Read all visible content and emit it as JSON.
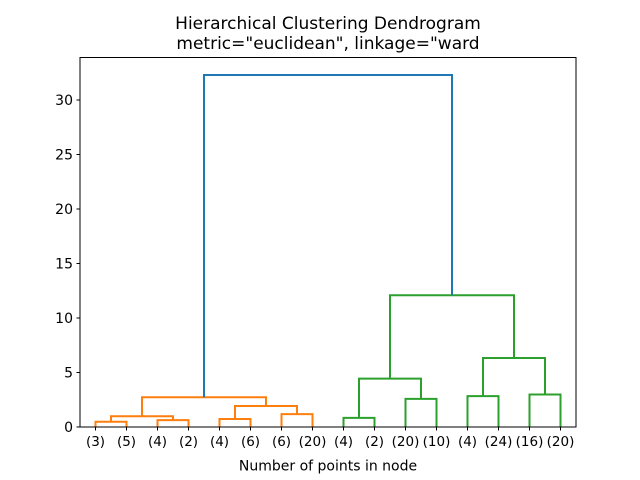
{
  "chart_data": {
    "type": "dendrogram",
    "title": "Hierarchical Clustering Dendrogram",
    "subtitle": "metric=\"euclidean\", linkage=\"ward",
    "xlabel": "Number of points in node",
    "ylabel": "",
    "xlim": [
      0,
      160
    ],
    "ylim": [
      0,
      33.9
    ],
    "yticks": [
      0,
      5,
      10,
      15,
      20,
      25,
      30
    ],
    "grid": false,
    "legend": null,
    "leaf_x": [
      5,
      15,
      25,
      35,
      45,
      55,
      65,
      75,
      85,
      95,
      105,
      115,
      125,
      135,
      145,
      155
    ],
    "leaf_labels": [
      "(3)",
      "(5)",
      "(4)",
      "(2)",
      "(4)",
      "(6)",
      "(6)",
      "(20)",
      "(4)",
      "(2)",
      "(20)",
      "(10)",
      "(4)",
      "(24)",
      "(16)",
      "(20)"
    ],
    "colors": {
      "blue": "#1f77b4",
      "orange": "#ff7f0e",
      "green": "#2ca02c",
      "spine": "#000000"
    },
    "links": [
      {
        "x1": 5,
        "h1": 0,
        "x2": 15,
        "h2": 0,
        "h": 0.5,
        "c": "orange"
      },
      {
        "x1": 25,
        "h1": 0,
        "x2": 35,
        "h2": 0,
        "h": 0.65,
        "c": "orange"
      },
      {
        "x1": 10,
        "h1": 0.5,
        "x2": 30,
        "h2": 0.65,
        "h": 1.0,
        "c": "orange"
      },
      {
        "x1": 45,
        "h1": 0,
        "x2": 55,
        "h2": 0,
        "h": 0.75,
        "c": "orange"
      },
      {
        "x1": 65,
        "h1": 0,
        "x2": 75,
        "h2": 0,
        "h": 1.2,
        "c": "orange"
      },
      {
        "x1": 50,
        "h1": 0.75,
        "x2": 70,
        "h2": 1.2,
        "h": 1.95,
        "c": "orange"
      },
      {
        "x1": 20,
        "h1": 1.0,
        "x2": 60,
        "h2": 1.95,
        "h": 2.75,
        "c": "orange"
      },
      {
        "x1": 85,
        "h1": 0,
        "x2": 95,
        "h2": 0,
        "h": 0.85,
        "c": "green"
      },
      {
        "x1": 105,
        "h1": 0,
        "x2": 115,
        "h2": 0,
        "h": 2.6,
        "c": "green"
      },
      {
        "x1": 90,
        "h1": 0.85,
        "x2": 110,
        "h2": 2.6,
        "h": 4.45,
        "c": "green"
      },
      {
        "x1": 125,
        "h1": 0,
        "x2": 135,
        "h2": 0,
        "h": 2.85,
        "c": "green"
      },
      {
        "x1": 145,
        "h1": 0,
        "x2": 155,
        "h2": 0,
        "h": 3.0,
        "c": "green"
      },
      {
        "x1": 130,
        "h1": 2.85,
        "x2": 150,
        "h2": 3.0,
        "h": 6.35,
        "c": "green"
      },
      {
        "x1": 100,
        "h1": 4.45,
        "x2": 140,
        "h2": 6.35,
        "h": 12.1,
        "c": "green"
      },
      {
        "x1": 40,
        "h1": 2.75,
        "x2": 120,
        "h2": 12.1,
        "h": 32.3,
        "c": "blue"
      }
    ]
  }
}
